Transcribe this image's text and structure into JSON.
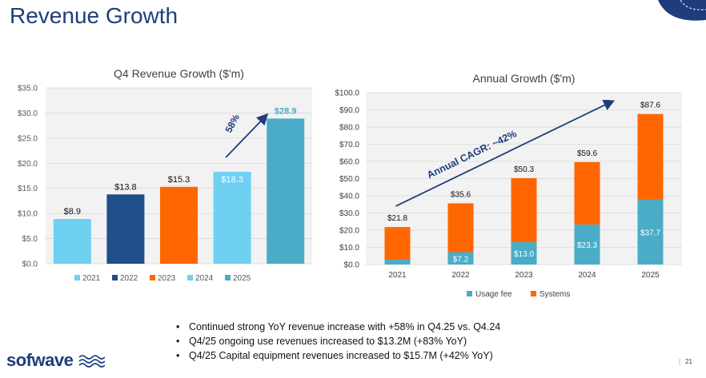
{
  "slide": {
    "title": "Revenue Growth",
    "page_number": "21",
    "page_separator": "|"
  },
  "colors": {
    "navy": "#1f3d7a",
    "light_blue": "#6fd0f2",
    "dark_blue": "#1f4e8a",
    "orange": "#ff6600",
    "teal": "#4aacc6"
  },
  "logo": {
    "text": "sofwave",
    "icon": "wave-lines-icon"
  },
  "chart_data": [
    {
      "type": "bar",
      "title": "Q4 Revenue Growth ($'m)",
      "categories": [
        "2021",
        "2022",
        "2023",
        "2024",
        "2025"
      ],
      "values": [
        8.9,
        13.8,
        15.3,
        18.3,
        28.9
      ],
      "labels": [
        "$8.9",
        "$13.8",
        "$15.3",
        "$18.3",
        "$28.9"
      ],
      "colors": [
        "#6fd0f2",
        "#1f4e8a",
        "#ff6600",
        "#6fd0f2",
        "#4aacc6"
      ],
      "ylim": [
        0,
        35
      ],
      "yticks": [
        "$0.0",
        "$5.0",
        "$10.0",
        "$15.0",
        "$20.0",
        "$25.0",
        "$30.0",
        "$35.0"
      ],
      "legend": [
        "2021",
        "2022",
        "2023",
        "2024",
        "2025"
      ],
      "annotation": "58%"
    },
    {
      "type": "stacked-bar",
      "title": "Annual Growth ($'m)",
      "categories": [
        "2021",
        "2022",
        "2023",
        "2024",
        "2025"
      ],
      "series": [
        {
          "name": "Usage fee",
          "color": "#4aacc6",
          "values": [
            2.8,
            7.2,
            13.0,
            23.3,
            37.7
          ],
          "labels": [
            "",
            "$7.2",
            "$13.0",
            "$23.3",
            "$37.7"
          ]
        },
        {
          "name": "Systems",
          "color": "#ff6600",
          "values": [
            19.0,
            28.4,
            37.3,
            36.3,
            49.9
          ]
        }
      ],
      "totals": [
        "$21.8",
        "$35.6",
        "$50.3",
        "$59.6",
        "$87.6"
      ],
      "total_values": [
        21.8,
        35.6,
        50.3,
        59.6,
        87.6
      ],
      "ylim": [
        0,
        100
      ],
      "yticks": [
        "$0.0",
        "$10.0",
        "$20.0",
        "$30.0",
        "$40.0",
        "$50.0",
        "$60.0",
        "$70.0",
        "$80.0",
        "$90.0",
        "$100.0"
      ],
      "annotation": "Annual CAGR: ~42%"
    }
  ],
  "bullets": [
    "Continued strong YoY revenue increase with +58% in Q4.25 vs. Q4.24",
    "Q4/25 ongoing use revenues increased to $13.2M (+83% YoY)",
    "Q4/25 Capital equipment revenues increased to $15.7M (+42% YoY)"
  ]
}
